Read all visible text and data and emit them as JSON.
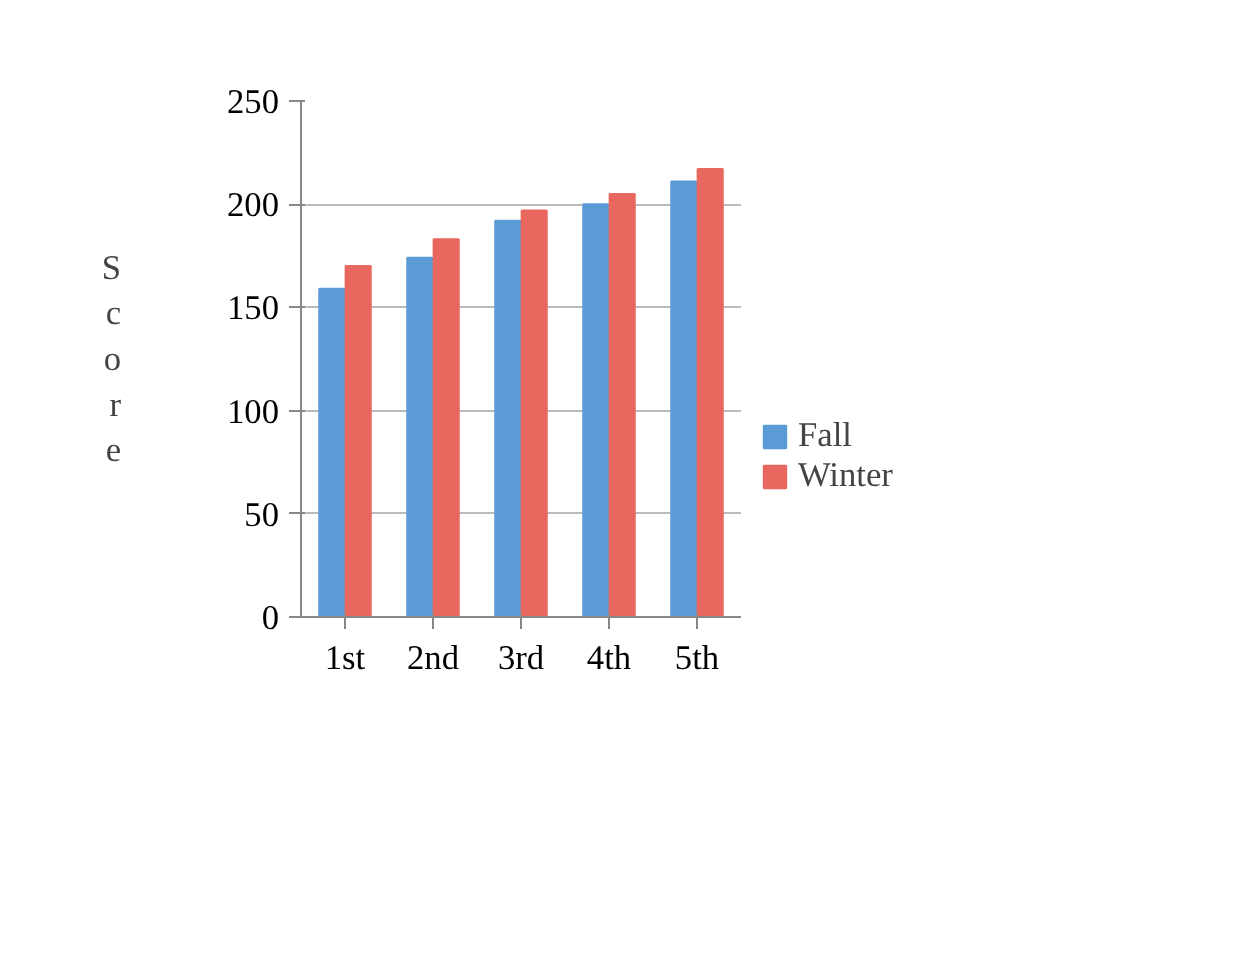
{
  "chart_data": {
    "type": "bar",
    "ylabel": "Score",
    "categories": [
      "1st",
      "2nd",
      "3rd",
      "4th",
      "5th"
    ],
    "series": [
      {
        "name": "Fall",
        "color": "#5b9bd5",
        "values": [
          159,
          174,
          192,
          200,
          211
        ]
      },
      {
        "name": "Winter",
        "color": "#e8675f",
        "values": [
          170,
          183,
          197,
          205,
          217
        ]
      }
    ],
    "ylim": [
      0,
      250
    ],
    "yticks": [
      0,
      50,
      100,
      150,
      200,
      250
    ],
    "grid": "y",
    "legend": "right"
  }
}
